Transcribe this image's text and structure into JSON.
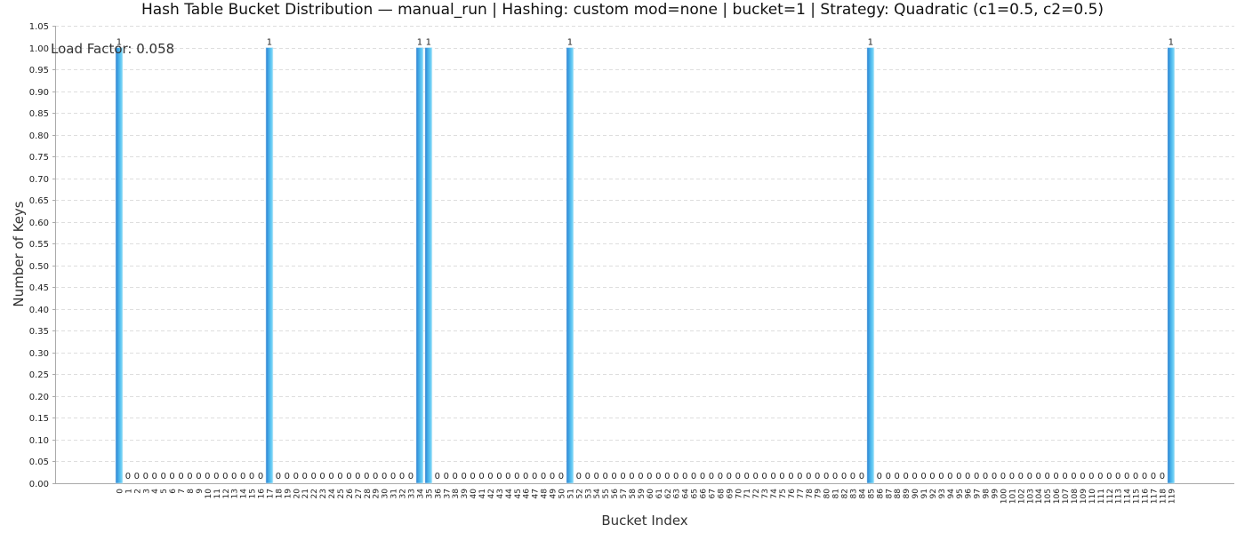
{
  "chart_data": {
    "type": "bar",
    "title": "Hash Table Bucket Distribution — manual_run | Hashing: custom mod=none | bucket=1 | Strategy: Quadratic (c1=0.5, c2=0.5)",
    "xlabel": "Bucket Index",
    "ylabel": "Number of Keys",
    "ylim": [
      0,
      1.05
    ],
    "yticks": [
      "0.00",
      "0.05",
      "0.10",
      "0.15",
      "0.20",
      "0.25",
      "0.30",
      "0.35",
      "0.40",
      "0.45",
      "0.50",
      "0.55",
      "0.60",
      "0.65",
      "0.70",
      "0.75",
      "0.80",
      "0.85",
      "0.90",
      "0.95",
      "1.00",
      "1.05"
    ],
    "categories": [
      "0",
      "1",
      "2",
      "3",
      "4",
      "5",
      "6",
      "7",
      "8",
      "9",
      "10",
      "11",
      "12",
      "13",
      "14",
      "15",
      "16",
      "17",
      "18",
      "19",
      "20",
      "21",
      "22",
      "23",
      "24",
      "25",
      "26",
      "27",
      "28",
      "29",
      "30",
      "31",
      "32",
      "33",
      "34",
      "35",
      "36",
      "37",
      "38",
      "39",
      "40",
      "41",
      "42",
      "43",
      "44",
      "45",
      "46",
      "47",
      "48",
      "49",
      "50",
      "51",
      "52",
      "53",
      "54",
      "55",
      "56",
      "57",
      "58",
      "59",
      "60",
      "61",
      "62",
      "63",
      "64",
      "65",
      "66",
      "67",
      "68",
      "69",
      "70",
      "71",
      "72",
      "73",
      "74",
      "75",
      "76",
      "77",
      "78",
      "79",
      "80",
      "81",
      "82",
      "83",
      "84",
      "85",
      "86",
      "87",
      "88",
      "89",
      "90",
      "91",
      "92",
      "93",
      "94",
      "95",
      "96",
      "97",
      "98",
      "99",
      "100",
      "101",
      "102",
      "103",
      "104",
      "105",
      "106",
      "107",
      "108",
      "109",
      "110",
      "111",
      "112",
      "113",
      "114",
      "115",
      "116",
      "117",
      "118",
      "119"
    ],
    "values": [
      1,
      0,
      0,
      0,
      0,
      0,
      0,
      0,
      0,
      0,
      0,
      0,
      0,
      0,
      0,
      0,
      0,
      1,
      0,
      0,
      0,
      0,
      0,
      0,
      0,
      0,
      0,
      0,
      0,
      0,
      0,
      0,
      0,
      0,
      1,
      1,
      0,
      0,
      0,
      0,
      0,
      0,
      0,
      0,
      0,
      0,
      0,
      0,
      0,
      0,
      0,
      1,
      0,
      0,
      0,
      0,
      0,
      0,
      0,
      0,
      0,
      0,
      0,
      0,
      0,
      0,
      0,
      0,
      0,
      0,
      0,
      0,
      0,
      0,
      0,
      0,
      0,
      0,
      0,
      0,
      0,
      0,
      0,
      0,
      0,
      1,
      0,
      0,
      0,
      0,
      0,
      0,
      0,
      0,
      0,
      0,
      0,
      0,
      0,
      0,
      0,
      0,
      0,
      0,
      0,
      0,
      0,
      0,
      0,
      0,
      0,
      0,
      0,
      0,
      0,
      0,
      0,
      0,
      0,
      1
    ],
    "grid": true,
    "annotations": [
      "Load Factor: 0.058"
    ]
  },
  "colors": {
    "bar_dark": "#2f7fd0",
    "bar_mid": "#48b8ec",
    "bar_light": "#7fd6f7",
    "grid": "#dedede",
    "axis": "#aaaaaa",
    "text": "#333333"
  }
}
